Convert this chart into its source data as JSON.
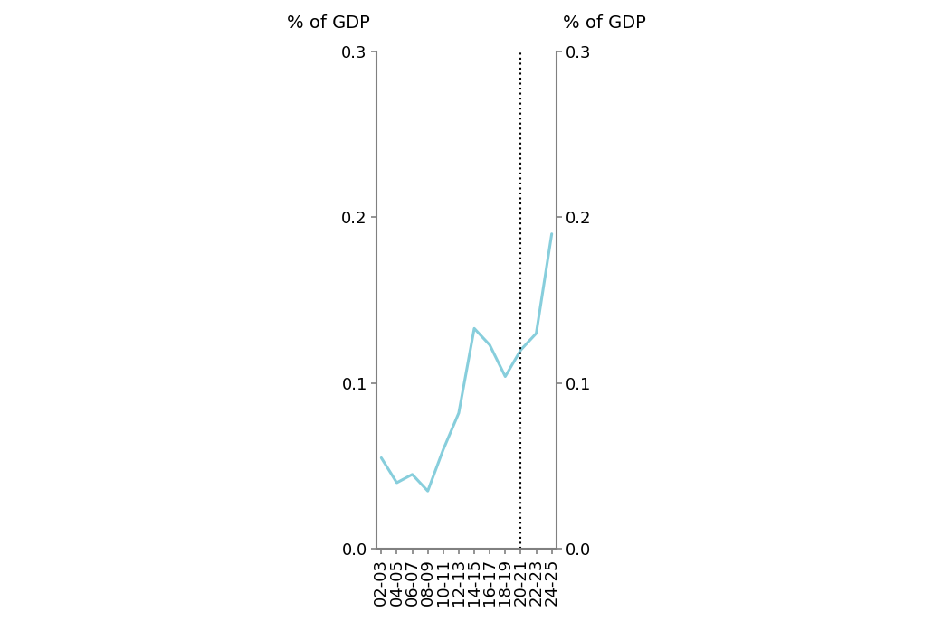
{
  "x_labels": [
    "02-03",
    "04-05",
    "06-07",
    "08-09",
    "10-11",
    "12-13",
    "14-15",
    "16-17",
    "18-19",
    "20-21",
    "22-23",
    "24-25"
  ],
  "x_values": [
    0,
    1,
    2,
    3,
    4,
    5,
    6,
    7,
    8,
    9,
    10,
    11
  ],
  "y_values": [
    0.055,
    0.04,
    0.045,
    0.035,
    0.06,
    0.082,
    0.133,
    0.123,
    0.104,
    0.12,
    0.13,
    0.19
  ],
  "line_color": "#87CEDC",
  "line_width": 2.2,
  "ylim": [
    0.0,
    0.3
  ],
  "yticks": [
    0.0,
    0.1,
    0.2,
    0.3
  ],
  "ytick_labels": [
    "0.0",
    "0.1",
    "0.2",
    "0.3"
  ],
  "ylabel_left": "% of GDP",
  "ylabel_right": "% of GDP",
  "dotted_line_x": 9,
  "axis_color": "#808080",
  "background_color": "#ffffff",
  "label_fontsize": 14,
  "tick_fontsize": 13
}
